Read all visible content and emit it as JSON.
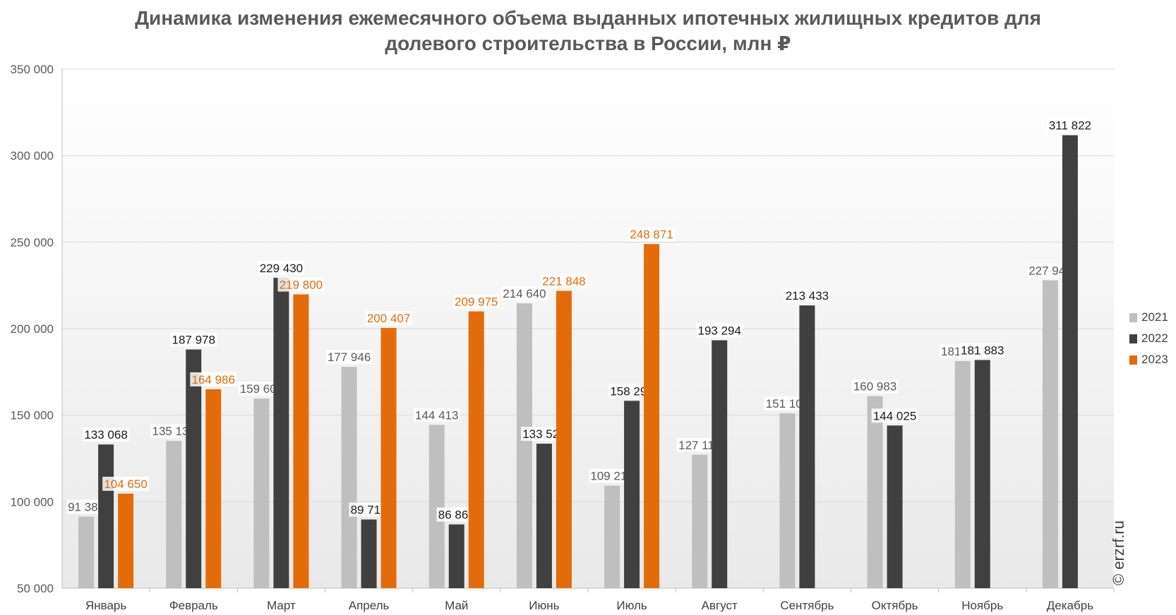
{
  "watermark": "© erzrf.ru",
  "chart_data": {
    "type": "bar",
    "title_lines": [
      "Динамика изменения ежемесячного объема выданных ипотечных жилищных кредитов для",
      "долевого строительства в России, млн ₽"
    ],
    "xlabel": "",
    "ylabel": "",
    "ylim": [
      50000,
      350000
    ],
    "y_ticks": [
      50000,
      100000,
      150000,
      200000,
      250000,
      300000,
      350000
    ],
    "y_tick_labels": [
      "50 000",
      "100 000",
      "150 000",
      "200 000",
      "250 000",
      "300 000",
      "350 000"
    ],
    "grid": "horizontal",
    "legend_position": "right",
    "categories": [
      "Январь",
      "Февраль",
      "Март",
      "Апрель",
      "Май",
      "Июнь",
      "Июль",
      "Август",
      "Сентябрь",
      "Октябрь",
      "Ноябрь",
      "Декабрь"
    ],
    "series": [
      {
        "name": "2021",
        "color": "#bfbfbf",
        "label_color": "#595959",
        "values": [
          91382,
          135131,
          159602,
          177946,
          144413,
          214640,
          109218,
          127118,
          151108,
          160983,
          181310,
          227947
        ],
        "labels": [
          "91 382",
          "135 131",
          "159 602",
          "177 946",
          "144 413",
          "214 640",
          "109 218",
          "127 118",
          "151 108",
          "160 983",
          "181 310",
          "227 947"
        ]
      },
      {
        "name": "2022",
        "color": "#404040",
        "label_color": "#1a1a1a",
        "values": [
          133068,
          187978,
          229430,
          89713,
          86860,
          133524,
          158292,
          193294,
          213433,
          144025,
          181883,
          311822
        ],
        "labels": [
          "133 068",
          "187 978",
          "229 430",
          "89 713",
          "86 860",
          "133 524",
          "158 292",
          "193 294",
          "213 433",
          "144 025",
          "181 883",
          "311 822"
        ]
      },
      {
        "name": "2023",
        "color": "#e36c0a",
        "label_color": "#e36c0a",
        "values": [
          104650,
          164986,
          219800,
          200407,
          209975,
          221848,
          248871,
          null,
          null,
          null,
          null,
          null
        ],
        "labels": [
          "104 650",
          "164 986",
          "219 800",
          "200 407",
          "209 975",
          "221 848",
          "248 871",
          null,
          null,
          null,
          null,
          null
        ]
      }
    ]
  }
}
